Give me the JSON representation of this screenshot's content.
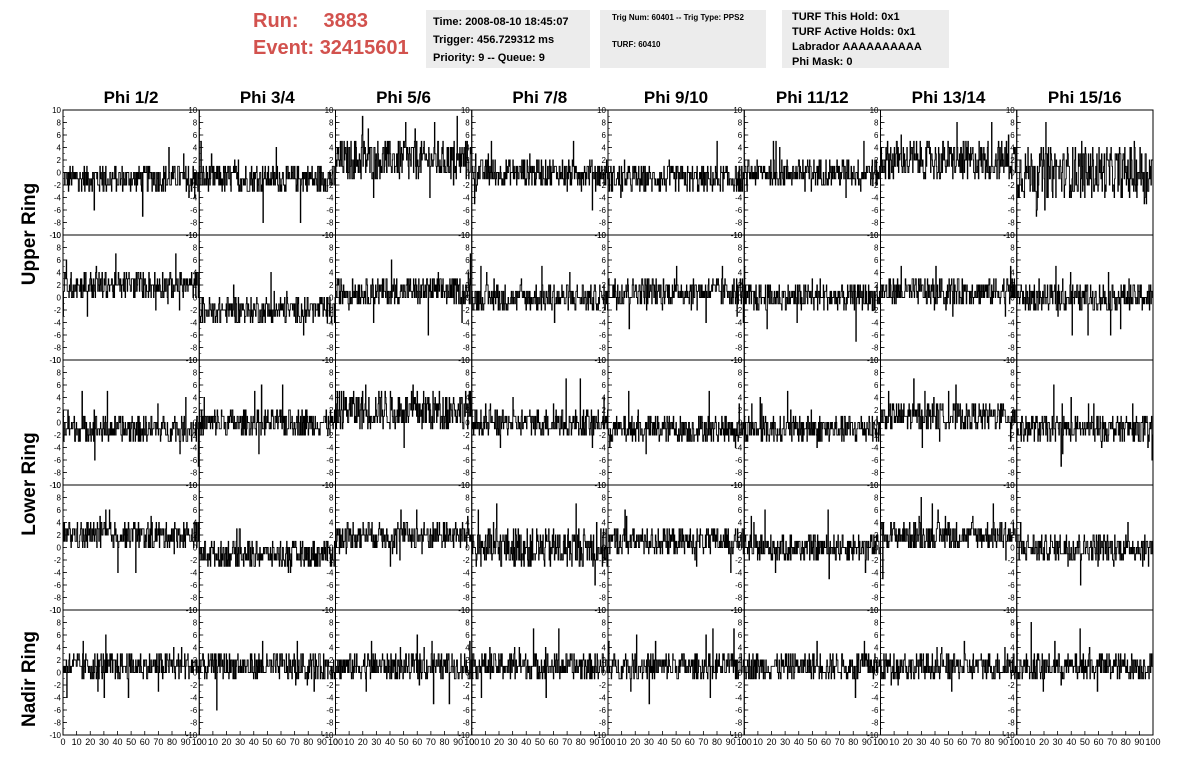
{
  "run": {
    "run_label": "Run:",
    "run_value": "3883",
    "event_label": "Event:",
    "event_value": "32415601",
    "color": "#d2524e"
  },
  "time_panel": {
    "time": "Time: 2008-08-10 18:45:07",
    "trigger": "Trigger: 456.729312 ms",
    "priority": "Priority: 9 -- Queue: 9"
  },
  "trig_panel": {
    "trig": "Trig Num: 60401 -- Trig Type: PPS2",
    "turf": "TURF: 60410"
  },
  "turf_panel": {
    "this_hold": "TURF This Hold: 0x1",
    "active_holds": "TURF Active Holds: 0x1",
    "labrador": "Labrador AAAAAAAAAA",
    "phi_mask": "Phi Mask: 0"
  },
  "columns": [
    "Phi 1/2",
    "Phi 3/4",
    "Phi 5/6",
    "Phi 7/8",
    "Phi 9/10",
    "Phi 11/12",
    "Phi 13/14",
    "Phi 15/16"
  ],
  "rings": [
    "Upper Ring",
    "Lower Ring",
    "Nadir Ring"
  ],
  "chart_data": {
    "type": "line",
    "rows": 5,
    "cols": 8,
    "xlim": [
      0,
      100
    ],
    "ylim": [
      -10,
      10
    ],
    "x_ticks": [
      0,
      10,
      20,
      30,
      40,
      50,
      60,
      70,
      80,
      90,
      100
    ],
    "y_ticks": [
      10,
      8,
      6,
      4,
      2,
      0,
      -2,
      -4,
      -6,
      -8,
      -10
    ],
    "samples": 260,
    "panel_offsets": [
      [
        -1,
        -1,
        2,
        0,
        -1,
        0,
        2,
        0
      ],
      [
        2,
        -2,
        1,
        0,
        1,
        0,
        1,
        0
      ],
      [
        -1,
        0,
        2,
        0,
        -1,
        -1,
        1,
        -1
      ],
      [
        2,
        -1,
        2,
        0,
        1,
        0,
        2,
        0
      ],
      [
        1,
        1,
        1,
        1,
        1,
        1,
        1,
        1
      ]
    ],
    "panel_spread": [
      [
        2,
        2,
        3,
        2,
        2,
        2,
        3,
        4
      ],
      [
        2,
        2,
        2,
        2,
        2,
        2,
        2,
        2
      ],
      [
        2,
        2,
        3,
        2,
        2,
        2,
        2,
        2
      ],
      [
        2,
        2,
        2,
        3,
        2,
        2,
        2,
        2
      ],
      [
        2,
        2,
        2,
        2,
        2,
        2,
        2,
        2
      ]
    ]
  }
}
